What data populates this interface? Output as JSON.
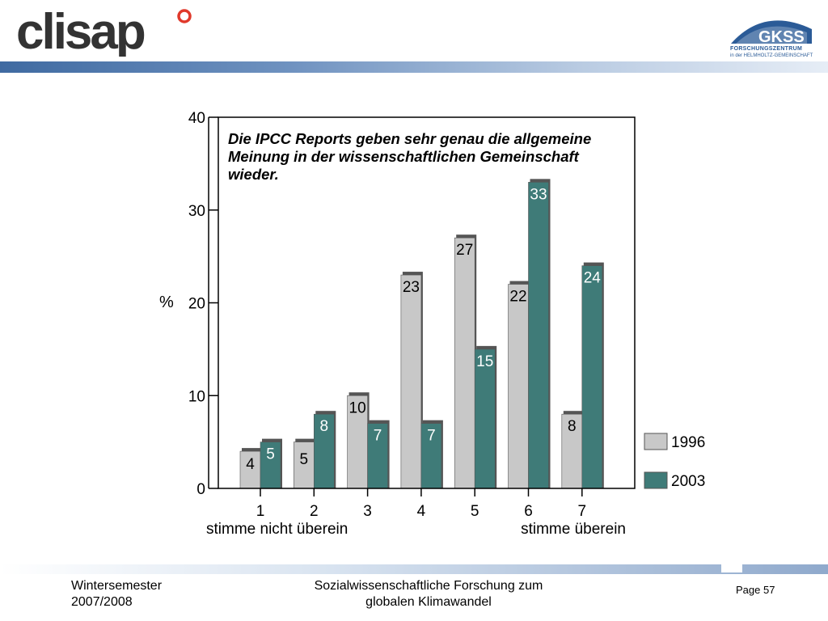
{
  "header": {
    "logo_left_text": "clisap",
    "logo_right_text": "GKSS",
    "logo_right_sub1": "FORSCHUNGSZENTRUM",
    "logo_right_sub2": "in der HELMHOLTZ-GEMEINSCHAFT",
    "bar_color": "#3f6aa1"
  },
  "chart_data": {
    "type": "bar",
    "title": "Die IPCC Reports geben sehr genau die allgemeine Meinung in der wissenschaftlichen Gemeinschaft wieder.",
    "title_lines": [
      "Die IPCC Reports geben sehr genau die allgemeine",
      "Meinung in der wissenschaftlichen Gemeinschaft",
      "wieder."
    ],
    "ylabel": "%",
    "xlabel_left": "stimme nicht überein",
    "xlabel_right": "stimme überein",
    "ylim": [
      0,
      40
    ],
    "yticks": [
      0,
      10,
      20,
      30,
      40
    ],
    "categories": [
      "1",
      "2",
      "3",
      "4",
      "5",
      "6",
      "7"
    ],
    "series": [
      {
        "name": "1996",
        "values": [
          4,
          5,
          10,
          23,
          27,
          22,
          8
        ],
        "color": "#c8c8c8"
      },
      {
        "name": "2003",
        "values": [
          5,
          8,
          7,
          7,
          15,
          33,
          24
        ],
        "color": "#3f7b78"
      }
    ],
    "legend_position": "right"
  },
  "footer": {
    "left": "Wintersemester\n2007/2008",
    "center": "Sozialwissenschaftliche Forschung zum\nglobalen Klimawandel",
    "page": "Page 57"
  }
}
